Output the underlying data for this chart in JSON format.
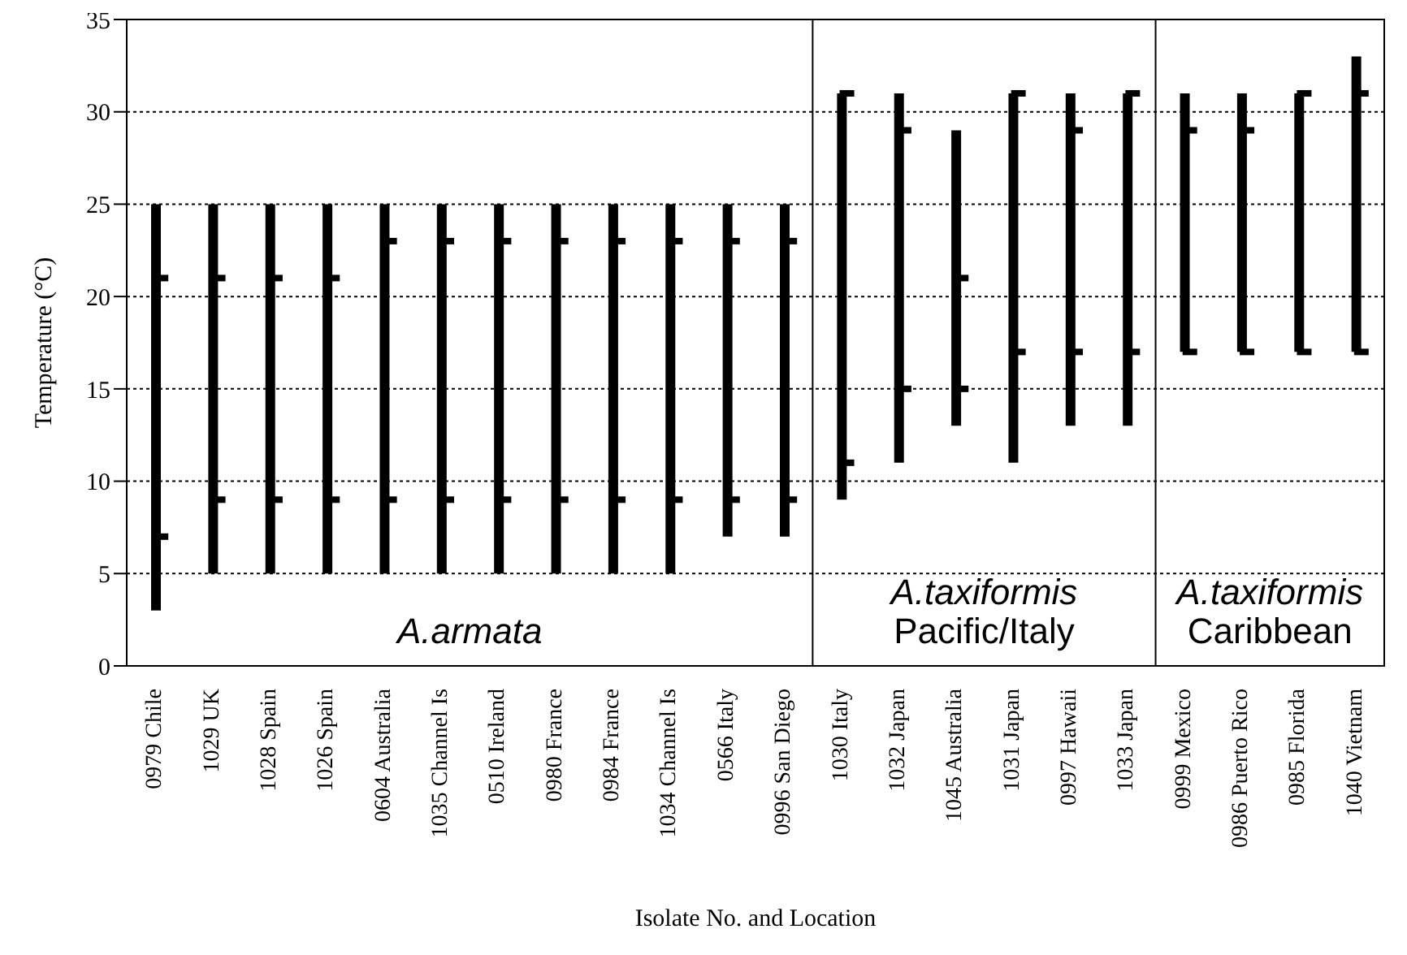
{
  "chart_data": {
    "type": "bar",
    "xlabel": "Isolate No. and Location",
    "ylabel": "Temperature (°C)",
    "categories": [
      "0979 Chile",
      "1029 UK",
      "1028 Spain",
      "1026 Spain",
      "0604 Australia",
      "1035 Channel Is",
      "0510 Ireland",
      "0980 France",
      "0984 France",
      "1034 Channel Is",
      "0566 Italy",
      "0996 San Diego",
      "1030 Italy",
      "1032 Japan",
      "1045 Australia",
      "1031 Japan",
      "0997 Hawaii",
      "1033 Japan",
      "0999 Mexico",
      "0986 Puerto Rico",
      "0985 Florida",
      "1040 Vietnam"
    ],
    "series": [
      {
        "color": "#000000",
        "base": [
          3,
          5,
          5,
          5,
          5,
          5,
          5,
          5,
          5,
          5,
          7,
          7,
          9,
          11,
          13,
          11,
          13,
          13,
          17,
          17,
          17,
          17
        ],
        "values": [
          22,
          20,
          20,
          20,
          20,
          20,
          20,
          20,
          20,
          20,
          18,
          18,
          22,
          20,
          16,
          20,
          18,
          18,
          14,
          14,
          14,
          16
        ]
      },
      {
        "type": "scatter",
        "color": "#000000",
        "values": [
          7,
          9,
          9,
          9,
          9,
          9,
          9,
          9,
          9,
          9,
          9,
          9,
          11,
          15,
          15,
          17,
          17,
          17,
          17,
          17,
          17,
          17
        ]
      },
      {
        "type": "scatter",
        "color": "#000000",
        "values": [
          21,
          21,
          21,
          21,
          23,
          23,
          23,
          23,
          23,
          23,
          23,
          23,
          31,
          29,
          21,
          31,
          29,
          31,
          29,
          29,
          31,
          31
        ]
      }
    ],
    "marker": "square",
    "ylim": [
      0,
      35
    ],
    "yticks": [
      0,
      5,
      10,
      15,
      20,
      25,
      30,
      35
    ],
    "grid": "y",
    "annotations": [
      "A.armata",
      "A.taxiformis\nPacific/Italy",
      "A.taxiformis\nCaribbean"
    ]
  }
}
